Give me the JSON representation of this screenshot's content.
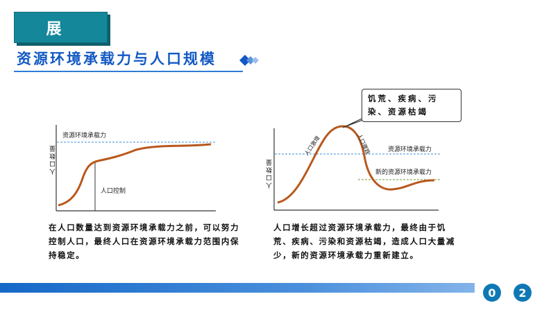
{
  "section": {
    "label": "展"
  },
  "page_title": "资源环境承载力与人口规模",
  "chart1": {
    "y_axis_label": "人口数量",
    "capacity_label": "资源环境承载力",
    "control_label": "人口控制",
    "description": "在人口数量达到资源环境承载力之前，可以努力控制人口，最终人口在资源环境承载力范围内保持稳定。"
  },
  "chart2": {
    "y_axis_label": "人口数量",
    "rise_label": "人口激增",
    "fall_label": "人口骤跌",
    "capacity_label": "资源环境承载力",
    "new_capacity_label": "新的资源环境承载力",
    "callout_line1": "饥荒、疾病、污",
    "callout_line2": "染、资源枯竭",
    "description": "人口增长超过资源环境承载力，最终由于饥荒、疾病、污染和资源枯竭，造成人口大量减少，新的资源环境承载力重新建立。"
  },
  "page_number": {
    "digit1": "0",
    "digit2": "2"
  },
  "colors": {
    "accent": "#1259c3",
    "section_box": "#14889a",
    "curve": "#b8581c",
    "capacity_line": "#3d8fd6",
    "new_capacity_line": "#6f9a2e"
  }
}
